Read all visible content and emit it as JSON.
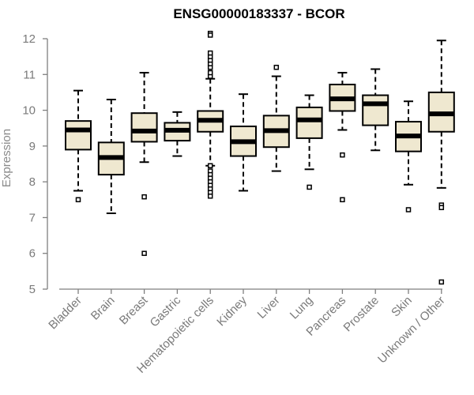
{
  "chart_data": {
    "type": "boxplot",
    "title": "ENSG00000183337 - BCOR",
    "xlabel": "",
    "ylabel": "Expression",
    "ylim": [
      5,
      12
    ],
    "yticks": [
      "5",
      "6",
      "7",
      "8",
      "9",
      "10",
      "11",
      "12"
    ],
    "grid": false,
    "legend": "none",
    "colors": {
      "box_fill": "#efe8d0",
      "median": "#000000",
      "axis": "#7f7f7f",
      "ticks": "#7a7a7a"
    },
    "categories": [
      "Bladder",
      "Brain",
      "Breast",
      "Gastric",
      "Hematopoietic cells",
      "Kidney",
      "Liver",
      "Lung",
      "Pancreas",
      "Prostate",
      "Skin",
      "Unknown / Other"
    ],
    "boxes": [
      {
        "whisker_low": 7.75,
        "q1": 8.9,
        "median": 9.45,
        "q3": 9.7,
        "whisker_high": 10.55,
        "outliers": [
          7.5
        ]
      },
      {
        "whisker_low": 7.12,
        "q1": 8.2,
        "median": 8.68,
        "q3": 9.1,
        "whisker_high": 10.3,
        "outliers": []
      },
      {
        "whisker_low": 8.55,
        "q1": 9.12,
        "median": 9.42,
        "q3": 9.92,
        "whisker_high": 11.05,
        "outliers": [
          7.58,
          6.0
        ]
      },
      {
        "whisker_low": 8.72,
        "q1": 9.15,
        "median": 9.44,
        "q3": 9.65,
        "whisker_high": 9.95,
        "outliers": []
      },
      {
        "whisker_low": 8.45,
        "q1": 9.4,
        "median": 9.72,
        "q3": 9.98,
        "whisker_high": 10.88,
        "outliers": [
          8.45,
          8.3,
          8.2,
          8.1,
          8.0,
          7.9,
          7.8,
          7.7,
          7.6,
          10.95,
          11.05,
          11.2,
          11.3,
          11.4,
          11.5,
          11.6,
          12.15,
          12.1
        ]
      },
      {
        "whisker_low": 7.75,
        "q1": 8.72,
        "median": 9.12,
        "q3": 9.55,
        "whisker_high": 10.45,
        "outliers": []
      },
      {
        "whisker_low": 8.3,
        "q1": 8.97,
        "median": 9.43,
        "q3": 9.85,
        "whisker_high": 10.95,
        "outliers": [
          11.2
        ]
      },
      {
        "whisker_low": 8.35,
        "q1": 9.22,
        "median": 9.73,
        "q3": 10.08,
        "whisker_high": 10.42,
        "outliers": [
          7.85
        ]
      },
      {
        "whisker_low": 9.45,
        "q1": 9.98,
        "median": 10.32,
        "q3": 10.72,
        "whisker_high": 11.05,
        "outliers": [
          8.75,
          7.5
        ]
      },
      {
        "whisker_low": 8.88,
        "q1": 9.58,
        "median": 10.18,
        "q3": 10.42,
        "whisker_high": 11.15,
        "outliers": []
      },
      {
        "whisker_low": 7.92,
        "q1": 8.85,
        "median": 9.28,
        "q3": 9.68,
        "whisker_high": 10.25,
        "outliers": [
          7.22
        ]
      },
      {
        "whisker_low": 7.83,
        "q1": 9.4,
        "median": 9.9,
        "q3": 10.5,
        "whisker_high": 11.95,
        "outliers": [
          7.35,
          7.28,
          5.2
        ]
      }
    ]
  }
}
